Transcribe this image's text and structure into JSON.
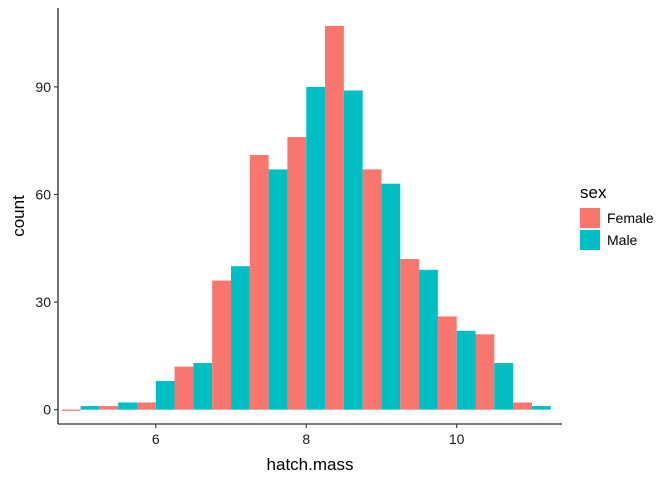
{
  "chart_data": {
    "type": "bar",
    "xlabel": "hatch.mass",
    "ylabel": "count",
    "xlim": [
      4.7,
      11.4
    ],
    "ylim": [
      -4,
      112
    ],
    "x_ticks": [
      6,
      8,
      10
    ],
    "y_ticks": [
      0,
      30,
      60,
      90
    ],
    "grid": false,
    "legend": {
      "title": "sex",
      "placement": "right"
    },
    "bin_width": 0.5,
    "bin_centers": [
      5.0,
      5.5,
      6.0,
      6.5,
      7.0,
      7.5,
      8.0,
      8.5,
      9.0,
      9.5,
      10.0,
      10.5,
      11.0
    ],
    "series": [
      {
        "name": "Female",
        "color": "#F8766D",
        "values": [
          0,
          1,
          2,
          12,
          36,
          71,
          76,
          107,
          67,
          42,
          26,
          21,
          2
        ]
      },
      {
        "name": "Male",
        "color": "#00BFC4",
        "values": [
          1,
          2,
          8,
          13,
          40,
          67,
          90,
          89,
          63,
          39,
          22,
          13,
          1
        ]
      }
    ]
  }
}
